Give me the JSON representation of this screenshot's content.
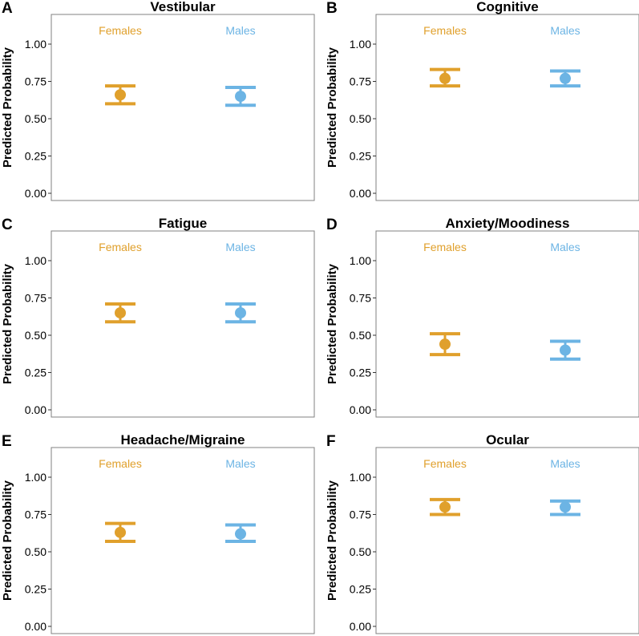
{
  "colors": {
    "females": "#E0A02C",
    "males": "#6CB4E4",
    "frame": "#808080",
    "tick": "#333333"
  },
  "chart_data": [
    {
      "type": "scatter",
      "panel": "A",
      "title": "Vestibular",
      "xlabel": "",
      "ylabel": "Predicted Probability",
      "ylim": [
        0.0,
        1.15
      ],
      "yticks": [
        "0.00",
        "0.25",
        "0.50",
        "0.75",
        "1.00"
      ],
      "grid": false,
      "categories": [
        "Females",
        "Males"
      ],
      "series": [
        {
          "name": "Females",
          "value": 0.66,
          "lower": 0.6,
          "upper": 0.72
        },
        {
          "name": "Males",
          "value": 0.65,
          "lower": 0.59,
          "upper": 0.71
        }
      ]
    },
    {
      "type": "scatter",
      "panel": "B",
      "title": "Cognitive",
      "xlabel": "",
      "ylabel": "Predicted Probability",
      "ylim": [
        0.0,
        1.15
      ],
      "yticks": [
        "0.00",
        "0.25",
        "0.50",
        "0.75",
        "1.00"
      ],
      "grid": false,
      "categories": [
        "Females",
        "Males"
      ],
      "series": [
        {
          "name": "Females",
          "value": 0.77,
          "lower": 0.72,
          "upper": 0.83
        },
        {
          "name": "Males",
          "value": 0.77,
          "lower": 0.72,
          "upper": 0.82
        }
      ]
    },
    {
      "type": "scatter",
      "panel": "C",
      "title": "Fatigue",
      "xlabel": "",
      "ylabel": "Predicted Probability",
      "ylim": [
        0.0,
        1.15
      ],
      "yticks": [
        "0.00",
        "0.25",
        "0.50",
        "0.75",
        "1.00"
      ],
      "grid": false,
      "categories": [
        "Females",
        "Males"
      ],
      "series": [
        {
          "name": "Females",
          "value": 0.65,
          "lower": 0.59,
          "upper": 0.71
        },
        {
          "name": "Males",
          "value": 0.65,
          "lower": 0.59,
          "upper": 0.71
        }
      ]
    },
    {
      "type": "scatter",
      "panel": "D",
      "title": "Anxiety/Moodiness",
      "xlabel": "",
      "ylabel": "Predicted Probability",
      "ylim": [
        0.0,
        1.15
      ],
      "yticks": [
        "0.00",
        "0.25",
        "0.50",
        "0.75",
        "1.00"
      ],
      "grid": false,
      "categories": [
        "Females",
        "Males"
      ],
      "series": [
        {
          "name": "Females",
          "value": 0.44,
          "lower": 0.37,
          "upper": 0.51
        },
        {
          "name": "Males",
          "value": 0.4,
          "lower": 0.34,
          "upper": 0.46
        }
      ]
    },
    {
      "type": "scatter",
      "panel": "E",
      "title": "Headache/Migraine",
      "xlabel": "",
      "ylabel": "Predicted Probability",
      "ylim": [
        0.0,
        1.15
      ],
      "yticks": [
        "0.00",
        "0.25",
        "0.50",
        "0.75",
        "1.00"
      ],
      "grid": false,
      "categories": [
        "Females",
        "Males"
      ],
      "series": [
        {
          "name": "Females",
          "value": 0.63,
          "lower": 0.57,
          "upper": 0.69
        },
        {
          "name": "Males",
          "value": 0.62,
          "lower": 0.57,
          "upper": 0.68
        }
      ]
    },
    {
      "type": "scatter",
      "panel": "F",
      "title": "Ocular",
      "xlabel": "",
      "ylabel": "Predicted Probability",
      "ylim": [
        0.0,
        1.15
      ],
      "yticks": [
        "0.00",
        "0.25",
        "0.50",
        "0.75",
        "1.00"
      ],
      "grid": false,
      "categories": [
        "Females",
        "Males"
      ],
      "series": [
        {
          "name": "Females",
          "value": 0.8,
          "lower": 0.75,
          "upper": 0.85
        },
        {
          "name": "Males",
          "value": 0.8,
          "lower": 0.75,
          "upper": 0.84
        }
      ]
    }
  ]
}
